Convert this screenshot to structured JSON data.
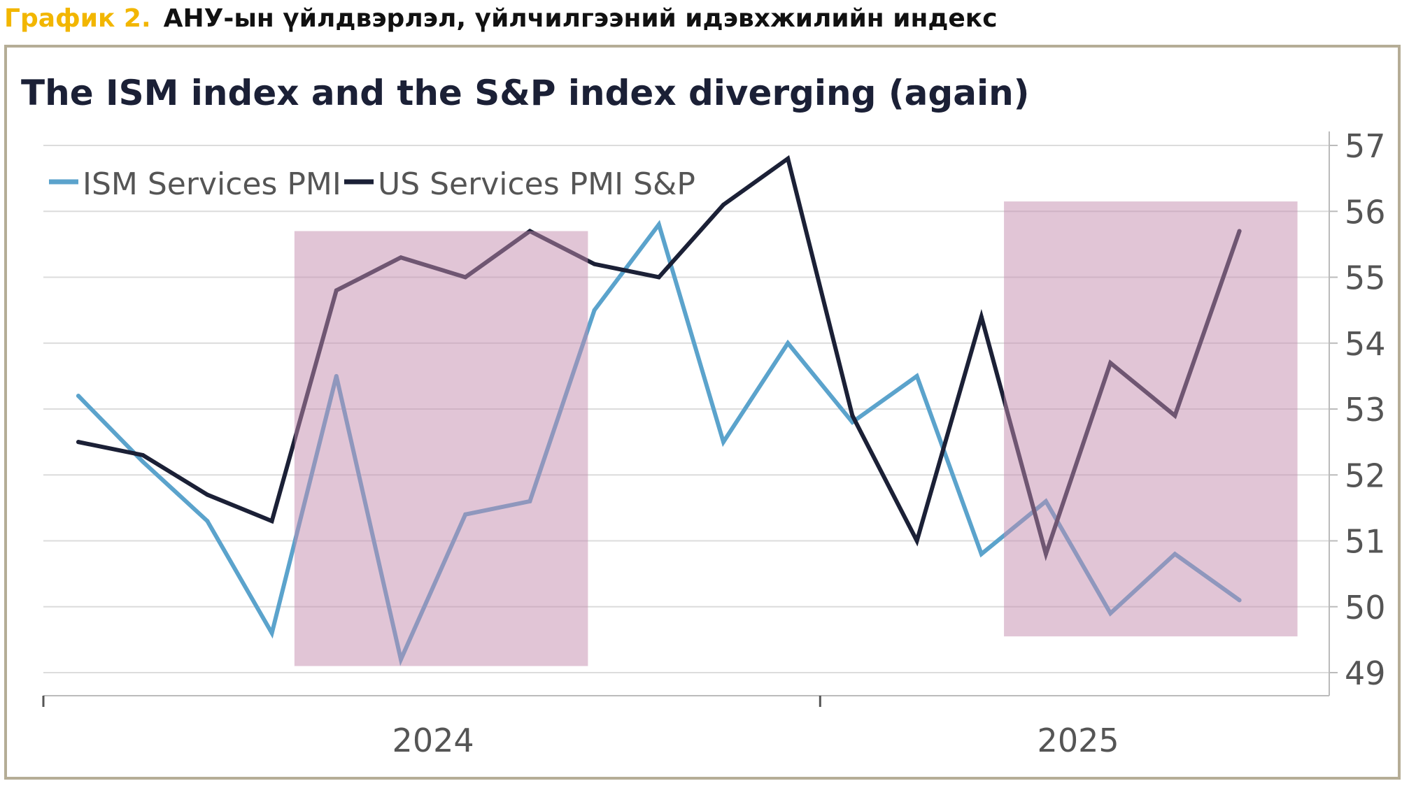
{
  "caption": {
    "number": "График 2.",
    "title": "АНУ-ын үйлдвэрлэл, үйлчилгээний идэвхжилийн индекс"
  },
  "colors": {
    "caption_number": "#F2B600",
    "frame": "#B5AD96",
    "ism": "#5BA3CC",
    "sp": "#1B2036",
    "shade": "#C48BAD",
    "grid": "#DCDCDC",
    "text": "#555555",
    "title": "#1B2036"
  },
  "chart_data": {
    "type": "line",
    "title": "The ISM index and the S&P index diverging (again)",
    "xlabel": "",
    "ylabel": "",
    "ylim": [
      49,
      57
    ],
    "yticks": [
      "57",
      "56",
      "55",
      "54",
      "53",
      "52",
      "51",
      "50",
      "49"
    ],
    "x_labels": [
      {
        "label": "2024",
        "index": 5.5
      },
      {
        "label": "2025",
        "index": 15.5
      }
    ],
    "year_divider_index": 11.5,
    "legend": {
      "position": "top-left",
      "entries": [
        "ISM Services PMI",
        "US Services PMI S&P"
      ]
    },
    "series": [
      {
        "name": "ISM Services PMI",
        "color": "#5BA3CC",
        "values": [
          53.2,
          52.2,
          51.3,
          49.6,
          53.5,
          49.2,
          51.4,
          51.6,
          54.5,
          55.8,
          52.5,
          54.0,
          52.8,
          53.5,
          50.8,
          51.6,
          49.9,
          50.8,
          50.1
        ]
      },
      {
        "name": "US Services PMI S&P",
        "color": "#1B2036",
        "values": [
          52.5,
          52.3,
          51.7,
          51.3,
          54.8,
          55.3,
          55.0,
          55.7,
          55.2,
          55.0,
          56.1,
          56.8,
          52.9,
          51.0,
          54.4,
          50.8,
          53.7,
          52.9,
          55.7
        ]
      }
    ],
    "shaded_ranges": [
      {
        "from_index": 3.35,
        "to_index": 7.9,
        "ymin": 49.1,
        "ymax": 55.7
      },
      {
        "from_index": 14.35,
        "to_index": 18.9,
        "ymin": 49.55,
        "ymax": 56.15
      }
    ]
  }
}
